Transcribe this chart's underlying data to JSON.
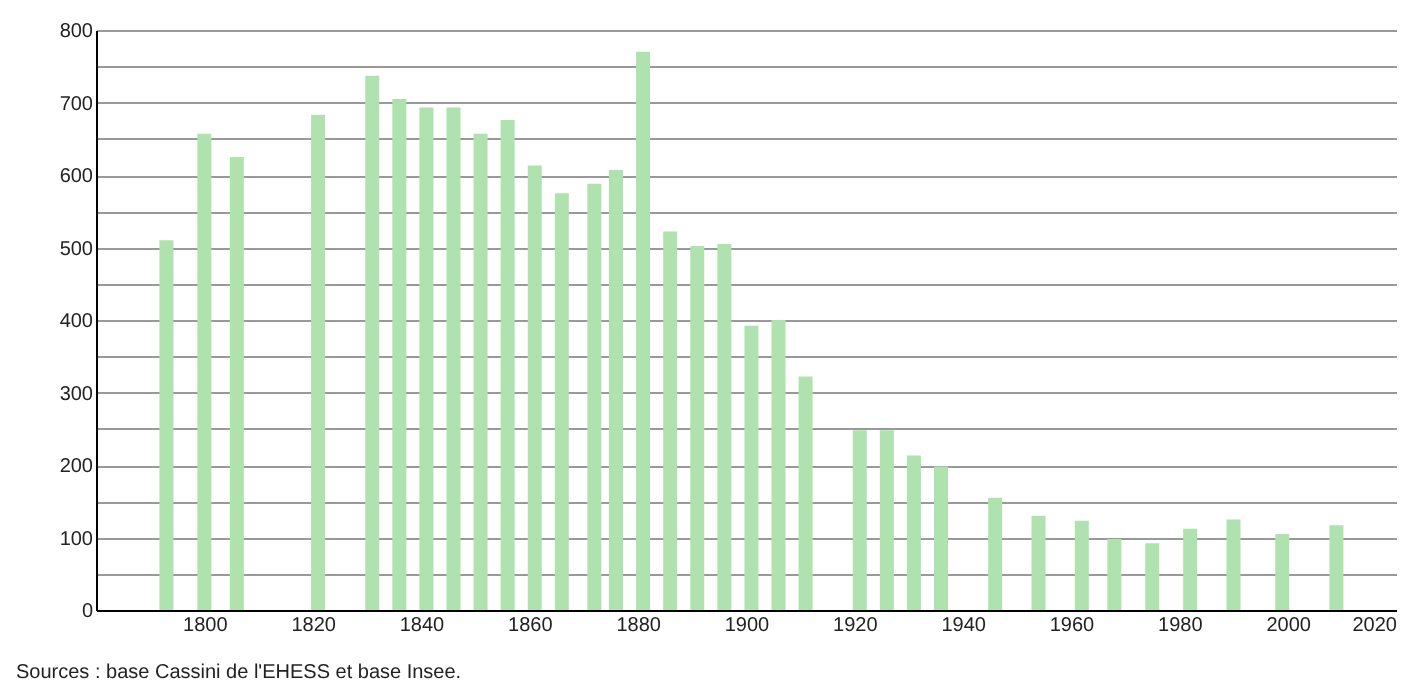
{
  "chart_data": {
    "type": "bar",
    "x": [
      1793,
      1800,
      1806,
      1821,
      1831,
      1836,
      1841,
      1846,
      1851,
      1856,
      1861,
      1866,
      1872,
      1876,
      1881,
      1886,
      1891,
      1896,
      1901,
      1906,
      1911,
      1921,
      1926,
      1931,
      1936,
      1946,
      1954,
      1962,
      1968,
      1975,
      1982,
      1990,
      1999,
      2009
    ],
    "values": [
      510,
      657,
      625,
      683,
      737,
      705,
      693,
      693,
      657,
      676,
      613,
      575,
      588,
      607,
      770,
      522,
      502,
      505,
      392,
      400,
      322,
      248,
      248,
      213,
      198,
      155,
      130,
      123,
      98,
      92,
      112,
      125,
      105,
      117
    ],
    "color": "#b0e2b0",
    "xlim": [
      1780,
      2020
    ],
    "xticks": [
      1800,
      1820,
      1840,
      1860,
      1880,
      1900,
      1920,
      1940,
      1960,
      1980,
      2000,
      2020
    ],
    "ylim": [
      0,
      800
    ],
    "yticks": [
      0,
      {
        "value": 50,
        "label": null
      },
      100,
      {
        "value": 150,
        "label": null
      },
      200,
      {
        "value": 250,
        "label": null
      },
      300,
      {
        "value": 350,
        "label": null
      },
      400,
      {
        "value": 450,
        "label": null
      },
      500,
      {
        "value": 550,
        "label": null
      },
      600,
      {
        "value": 650,
        "label": null
      },
      700,
      {
        "value": 750,
        "label": null
      },
      800
    ],
    "grid": "y",
    "annotations": [
      "Sources : base Cassini de l'EHESS et base Insee."
    ]
  }
}
